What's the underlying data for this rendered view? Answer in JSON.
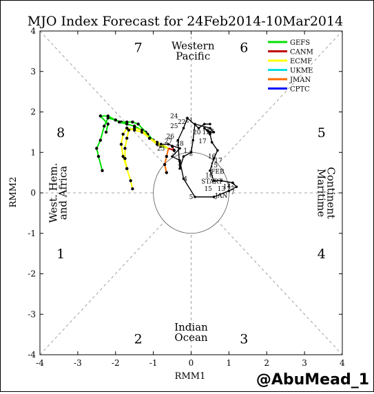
{
  "chart_data": {
    "type": "scatter",
    "title": "MJO Index Forecast for 24Feb2014-10Mar2014",
    "xlabel": "RMM1",
    "ylabel": "RMM2",
    "xlim": [
      -4,
      4
    ],
    "ylim": [
      -4,
      4
    ],
    "xticks": [
      "-4",
      "-3",
      "-2",
      "-1",
      "0",
      "1",
      "2",
      "3",
      "4"
    ],
    "yticks": [
      "-4",
      "-3",
      "-2",
      "-1",
      "0",
      "1",
      "2",
      "3",
      "4"
    ],
    "phases": [
      "1",
      "2",
      "3",
      "4",
      "5",
      "6",
      "7",
      "8"
    ],
    "regions": [
      {
        "id": "western-pacific",
        "lines": [
          "Western",
          "Pacific"
        ]
      },
      {
        "id": "indian-ocean",
        "lines": [
          "Indian",
          "Ocean"
        ]
      },
      {
        "id": "west-hem-africa",
        "lines": [
          "West. Hem.",
          "and Africa"
        ]
      },
      {
        "id": "maritime-continent",
        "lines": [
          "Maritime",
          "Continent"
        ]
      }
    ],
    "legend_position": "top-right",
    "legend": [
      {
        "name": "GEFS",
        "color": "#00e000"
      },
      {
        "name": "CANM",
        "color": "#c00000"
      },
      {
        "name": "ECMF",
        "color": "#ffff00"
      },
      {
        "name": "UKME",
        "color": "#00e0e0"
      },
      {
        "name": "JMAN",
        "color": "#ff6a00"
      },
      {
        "name": "CPTC",
        "color": "#0000ff"
      }
    ],
    "observed": {
      "color": "#000000",
      "points": [
        [
          -0.8,
          1.2
        ],
        [
          -0.6,
          1.2
        ],
        [
          -0.3,
          1.1
        ],
        [
          -0.5,
          0.9
        ],
        [
          -0.3,
          0.8
        ],
        [
          -0.2,
          0.35
        ],
        [
          0.1,
          -0.1
        ],
        [
          0.6,
          -0.1
        ],
        [
          1.0,
          0.05
        ],
        [
          1.2,
          0.15
        ],
        [
          1.1,
          0.25
        ],
        [
          0.8,
          0.3
        ],
        [
          0.6,
          0.3
        ],
        [
          0.5,
          0.55
        ],
        [
          0.6,
          0.85
        ],
        [
          0.7,
          1.05
        ],
        [
          0.55,
          1.25
        ],
        [
          0.5,
          1.45
        ],
        [
          0.35,
          1.6
        ],
        [
          0.5,
          1.5
        ],
        [
          0.6,
          1.5
        ],
        [
          0.5,
          1.6
        ],
        [
          0.1,
          1.7
        ],
        [
          0.05,
          1.3
        ],
        [
          0.0,
          1.0
        ],
        [
          -0.2,
          0.9
        ],
        [
          -0.3,
          0.6
        ],
        [
          -0.35,
          1.3
        ],
        [
          -0.2,
          1.6
        ],
        [
          -0.1,
          1.85
        ],
        [
          0.2,
          1.6
        ],
        [
          0.35,
          1.7
        ],
        [
          0.5,
          1.7
        ]
      ],
      "day_labels": [
        {
          "text": "24",
          "x": -0.45,
          "y": 1.9
        },
        {
          "text": "21",
          "x": -0.05,
          "y": 1.8
        },
        {
          "text": "22",
          "x": -0.25,
          "y": 1.75
        },
        {
          "text": "25",
          "x": -0.45,
          "y": 1.65
        },
        {
          "text": "20",
          "x": 0.15,
          "y": 1.5
        },
        {
          "text": "19",
          "x": 0.4,
          "y": 1.5
        },
        {
          "text": "18",
          "x": 0.5,
          "y": 1.52
        },
        {
          "text": "26",
          "x": -0.55,
          "y": 1.4
        },
        {
          "text": "27",
          "x": -0.6,
          "y": 1.28
        },
        {
          "text": "28",
          "x": -0.3,
          "y": 1.22
        },
        {
          "text": "23",
          "x": -0.8,
          "y": 1.1
        },
        {
          "text": "3",
          "x": -0.45,
          "y": 1.0
        },
        {
          "text": "17",
          "x": 0.3,
          "y": 1.28
        },
        {
          "text": "1",
          "x": -0.15,
          "y": 1.05
        },
        {
          "text": "2",
          "x": 0.0,
          "y": 0.98
        },
        {
          "text": "3",
          "x": -0.3,
          "y": 0.72
        },
        {
          "text": "16",
          "x": 0.55,
          "y": 0.9
        },
        {
          "text": "17",
          "x": 0.72,
          "y": 0.8
        },
        {
          "text": "15",
          "x": 0.6,
          "y": 0.68
        },
        {
          "text": "4",
          "x": -0.15,
          "y": 0.35
        },
        {
          "text": "FEB",
          "x": 0.7,
          "y": 0.53
        },
        {
          "text": "16",
          "x": 0.48,
          "y": 0.43
        },
        {
          "text": "START",
          "x": 0.55,
          "y": 0.28
        },
        {
          "text": "15",
          "x": 0.45,
          "y": 0.1
        },
        {
          "text": "13",
          "x": 0.8,
          "y": 0.1
        },
        {
          "text": "14",
          "x": 0.95,
          "y": 0.15
        },
        {
          "text": "12",
          "x": 1.05,
          "y": 0.2
        },
        {
          "text": "JAN",
          "x": 0.8,
          "y": -0.07
        },
        {
          "text": "5",
          "x": 0.0,
          "y": -0.1
        },
        {
          "text": "7",
          "x": 1.1,
          "y": 0.02
        }
      ]
    },
    "series": [
      {
        "name": "GEFS",
        "points": [
          [
            -0.6,
            1.1
          ],
          [
            -0.8,
            1.2
          ],
          [
            -1.0,
            1.3
          ],
          [
            -1.2,
            1.5
          ],
          [
            -1.4,
            1.7
          ],
          [
            -1.55,
            1.75
          ],
          [
            -1.7,
            1.75
          ],
          [
            -1.85,
            1.75
          ],
          [
            -2.0,
            1.8
          ],
          [
            -2.2,
            1.9
          ],
          [
            -2.4,
            1.9
          ],
          [
            -2.2,
            1.7
          ],
          [
            -2.25,
            1.5
          ]
        ]
      },
      {
        "name": "GEFS",
        "points": [
          [
            -0.6,
            1.1
          ],
          [
            -0.8,
            1.15
          ],
          [
            -1.0,
            1.3
          ],
          [
            -1.15,
            1.45
          ],
          [
            -1.3,
            1.55
          ],
          [
            -1.5,
            1.65
          ],
          [
            -1.7,
            1.7
          ],
          [
            -1.9,
            1.75
          ],
          [
            -2.0,
            1.8
          ],
          [
            -2.2,
            1.85
          ],
          [
            -2.3,
            1.65
          ],
          [
            -2.4,
            1.3
          ],
          [
            -2.5,
            1.1
          ],
          [
            -2.45,
            0.9
          ],
          [
            -2.35,
            0.55
          ]
        ]
      },
      {
        "name": "ECMF",
        "points": [
          [
            -0.6,
            1.1
          ],
          [
            -0.9,
            1.25
          ],
          [
            -1.1,
            1.35
          ],
          [
            -1.3,
            1.5
          ],
          [
            -1.5,
            1.55
          ],
          [
            -1.7,
            1.6
          ],
          [
            -1.8,
            1.45
          ],
          [
            -1.85,
            1.2
          ],
          [
            -1.8,
            0.9
          ],
          [
            -1.7,
            0.6
          ],
          [
            -1.6,
            0.3
          ],
          [
            -1.55,
            0.1
          ]
        ]
      },
      {
        "name": "ECMF",
        "points": [
          [
            -0.6,
            1.1
          ],
          [
            -0.9,
            1.2
          ],
          [
            -1.1,
            1.35
          ],
          [
            -1.3,
            1.55
          ],
          [
            -1.5,
            1.6
          ],
          [
            -1.65,
            1.55
          ],
          [
            -1.7,
            1.35
          ],
          [
            -1.75,
            1.1
          ],
          [
            -1.75,
            0.85
          ],
          [
            -1.7,
            0.6
          ]
        ]
      },
      {
        "name": "JMAN",
        "points": [
          [
            -0.6,
            1.1
          ],
          [
            -0.65,
            0.9
          ],
          [
            -0.7,
            0.7
          ],
          [
            -0.65,
            0.5
          ]
        ]
      },
      {
        "name": "CANM",
        "points": [
          [
            -0.6,
            1.1
          ],
          [
            -0.45,
            1.05
          ],
          [
            -0.5,
            1.15
          ]
        ]
      }
    ],
    "amplitude_circle_radius": 1,
    "grid": false
  },
  "watermark": "@AbuMead_1"
}
